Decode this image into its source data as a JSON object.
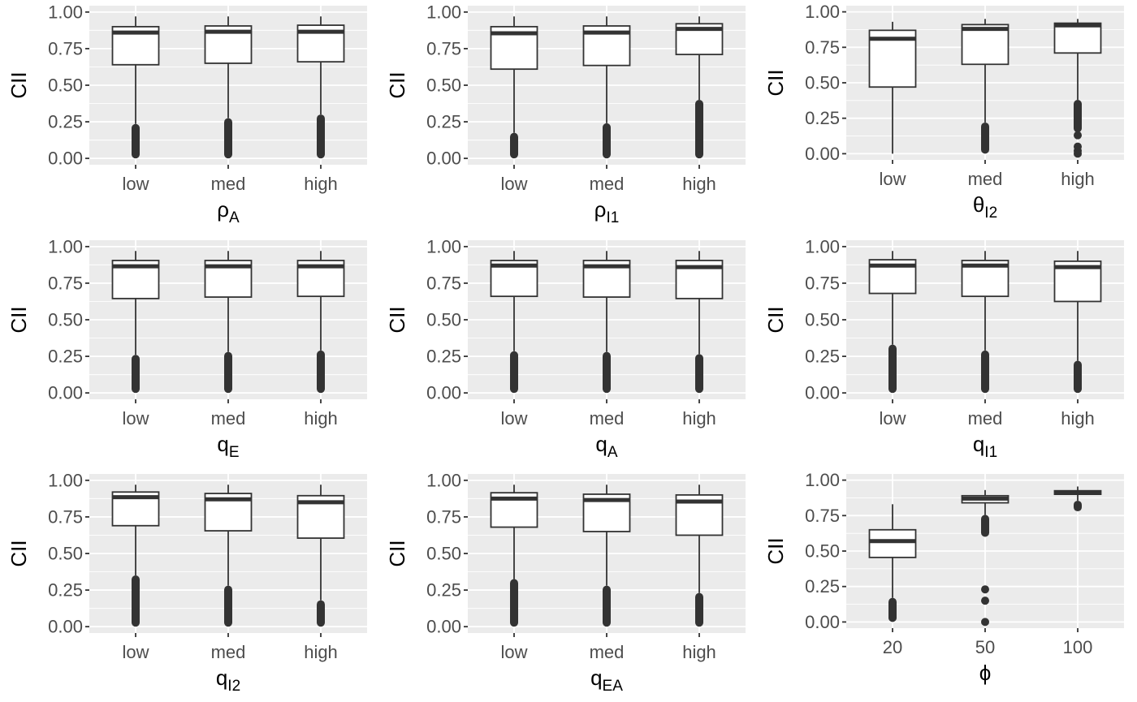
{
  "chart_data": [
    {
      "type": "box",
      "ylabel": "CII",
      "xlabel": {
        "base": "ρ",
        "sub": "A"
      },
      "ylim": [
        0,
        1
      ],
      "yticks": [
        "0.00",
        "0.25",
        "0.50",
        "0.75",
        "1.00"
      ],
      "categories": [
        "low",
        "med",
        "high"
      ],
      "boxes": [
        {
          "q1": 0.64,
          "median": 0.86,
          "q3": 0.9,
          "whisker_low": 0.235,
          "whisker_high": 0.97,
          "outliers": {
            "range": [
              0.0,
              0.235
            ]
          }
        },
        {
          "q1": 0.65,
          "median": 0.865,
          "q3": 0.905,
          "whisker_low": 0.275,
          "whisker_high": 0.97,
          "outliers": {
            "range": [
              0.0,
              0.275
            ]
          }
        },
        {
          "q1": 0.66,
          "median": 0.865,
          "q3": 0.91,
          "whisker_low": 0.3,
          "whisker_high": 0.97,
          "outliers": {
            "range": [
              0.0,
              0.3
            ]
          }
        }
      ]
    },
    {
      "type": "box",
      "ylabel": "CII",
      "xlabel": {
        "base": "ρ",
        "sub": "I1"
      },
      "ylim": [
        0,
        1
      ],
      "yticks": [
        "0.00",
        "0.25",
        "0.50",
        "0.75",
        "1.00"
      ],
      "categories": [
        "low",
        "med",
        "high"
      ],
      "boxes": [
        {
          "q1": 0.61,
          "median": 0.855,
          "q3": 0.9,
          "whisker_low": 0.175,
          "whisker_high": 0.97,
          "outliers": {
            "range": [
              0.0,
              0.175
            ]
          }
        },
        {
          "q1": 0.635,
          "median": 0.86,
          "q3": 0.905,
          "whisker_low": 0.24,
          "whisker_high": 0.97,
          "outliers": {
            "range": [
              0.0,
              0.24
            ]
          }
        },
        {
          "q1": 0.71,
          "median": 0.885,
          "q3": 0.92,
          "whisker_low": 0.4,
          "whisker_high": 0.97,
          "outliers": {
            "range": [
              0.0,
              0.4
            ]
          }
        }
      ]
    },
    {
      "type": "box",
      "ylabel": "CII",
      "xlabel": {
        "base": "θ",
        "sub": "I2"
      },
      "ylim": [
        0,
        1
      ],
      "yticks": [
        "0.00",
        "0.25",
        "0.50",
        "0.75",
        "1.00"
      ],
      "categories": [
        "low",
        "med",
        "high"
      ],
      "boxes": [
        {
          "q1": 0.47,
          "median": 0.81,
          "q3": 0.87,
          "whisker_low": 0.0,
          "whisker_high": 0.93
        },
        {
          "q1": 0.63,
          "median": 0.88,
          "q3": 0.91,
          "whisker_low": 0.22,
          "whisker_high": 0.95,
          "outliers": {
            "range": [
              0.0,
              0.22
            ]
          }
        },
        {
          "q1": 0.71,
          "median": 0.905,
          "q3": 0.92,
          "whisker_low": 0.38,
          "whisker_high": 0.95,
          "outliers": {
            "range": [
              0.15,
              0.38
            ],
            "points": [
              0.0,
              0.02,
              0.05,
              0.13
            ]
          }
        }
      ]
    },
    {
      "type": "box",
      "ylabel": "CII",
      "xlabel": {
        "base": "q",
        "sub": "E"
      },
      "ylim": [
        0,
        1
      ],
      "yticks": [
        "0.00",
        "0.25",
        "0.50",
        "0.75",
        "1.00"
      ],
      "categories": [
        "low",
        "med",
        "high"
      ],
      "boxes": [
        {
          "q1": 0.645,
          "median": 0.865,
          "q3": 0.905,
          "whisker_low": 0.26,
          "whisker_high": 0.97,
          "outliers": {
            "range": [
              0.0,
              0.26
            ]
          }
        },
        {
          "q1": 0.655,
          "median": 0.865,
          "q3": 0.905,
          "whisker_low": 0.28,
          "whisker_high": 0.97,
          "outliers": {
            "range": [
              0.0,
              0.28
            ]
          }
        },
        {
          "q1": 0.66,
          "median": 0.865,
          "q3": 0.905,
          "whisker_low": 0.29,
          "whisker_high": 0.97,
          "outliers": {
            "range": [
              0.0,
              0.29
            ]
          }
        }
      ]
    },
    {
      "type": "box",
      "ylabel": "CII",
      "xlabel": {
        "base": "q",
        "sub": "A"
      },
      "ylim": [
        0,
        1
      ],
      "yticks": [
        "0.00",
        "0.25",
        "0.50",
        "0.75",
        "1.00"
      ],
      "categories": [
        "low",
        "med",
        "high"
      ],
      "boxes": [
        {
          "q1": 0.66,
          "median": 0.87,
          "q3": 0.905,
          "whisker_low": 0.285,
          "whisker_high": 0.97,
          "outliers": {
            "range": [
              0.0,
              0.285
            ]
          }
        },
        {
          "q1": 0.655,
          "median": 0.865,
          "q3": 0.905,
          "whisker_low": 0.28,
          "whisker_high": 0.97,
          "outliers": {
            "range": [
              0.0,
              0.28
            ]
          }
        },
        {
          "q1": 0.645,
          "median": 0.86,
          "q3": 0.905,
          "whisker_low": 0.265,
          "whisker_high": 0.97,
          "outliers": {
            "range": [
              0.0,
              0.265
            ]
          }
        }
      ]
    },
    {
      "type": "box",
      "ylabel": "CII",
      "xlabel": {
        "base": "q",
        "sub": "I1"
      },
      "ylim": [
        0,
        1
      ],
      "yticks": [
        "0.00",
        "0.25",
        "0.50",
        "0.75",
        "1.00"
      ],
      "categories": [
        "low",
        "med",
        "high"
      ],
      "boxes": [
        {
          "q1": 0.68,
          "median": 0.87,
          "q3": 0.91,
          "whisker_low": 0.33,
          "whisker_high": 0.97,
          "outliers": {
            "range": [
              0.0,
              0.33
            ]
          }
        },
        {
          "q1": 0.66,
          "median": 0.87,
          "q3": 0.905,
          "whisker_low": 0.29,
          "whisker_high": 0.97,
          "outliers": {
            "range": [
              0.0,
              0.29
            ]
          }
        },
        {
          "q1": 0.625,
          "median": 0.86,
          "q3": 0.9,
          "whisker_low": 0.22,
          "whisker_high": 0.97,
          "outliers": {
            "range": [
              0.0,
              0.22
            ]
          }
        }
      ]
    },
    {
      "type": "box",
      "ylabel": "CII",
      "xlabel": {
        "base": "q",
        "sub": "I2"
      },
      "ylim": [
        0,
        1
      ],
      "yticks": [
        "0.00",
        "0.25",
        "0.50",
        "0.75",
        "1.00"
      ],
      "categories": [
        "low",
        "med",
        "high"
      ],
      "boxes": [
        {
          "q1": 0.69,
          "median": 0.885,
          "q3": 0.92,
          "whisker_low": 0.35,
          "whisker_high": 0.97,
          "outliers": {
            "range": [
              0.0,
              0.35
            ]
          }
        },
        {
          "q1": 0.655,
          "median": 0.87,
          "q3": 0.91,
          "whisker_low": 0.28,
          "whisker_high": 0.97,
          "outliers": {
            "range": [
              0.0,
              0.28
            ]
          }
        },
        {
          "q1": 0.605,
          "median": 0.85,
          "q3": 0.895,
          "whisker_low": 0.18,
          "whisker_high": 0.97,
          "outliers": {
            "range": [
              0.0,
              0.18
            ]
          }
        }
      ]
    },
    {
      "type": "box",
      "ylabel": "CII",
      "xlabel": {
        "base": "q",
        "sub": "EA"
      },
      "ylim": [
        0,
        1
      ],
      "yticks": [
        "0.00",
        "0.25",
        "0.50",
        "0.75",
        "1.00"
      ],
      "categories": [
        "low",
        "med",
        "high"
      ],
      "boxes": [
        {
          "q1": 0.68,
          "median": 0.875,
          "q3": 0.915,
          "whisker_low": 0.325,
          "whisker_high": 0.97,
          "outliers": {
            "range": [
              0.0,
              0.325
            ]
          }
        },
        {
          "q1": 0.65,
          "median": 0.865,
          "q3": 0.905,
          "whisker_low": 0.28,
          "whisker_high": 0.97,
          "outliers": {
            "range": [
              0.0,
              0.28
            ]
          }
        },
        {
          "q1": 0.625,
          "median": 0.855,
          "q3": 0.9,
          "whisker_low": 0.23,
          "whisker_high": 0.97,
          "outliers": {
            "range": [
              0.0,
              0.23
            ]
          }
        }
      ]
    },
    {
      "type": "box",
      "ylabel": "CII",
      "xlabel": {
        "base": "ϕ",
        "sub": ""
      },
      "ylim": [
        0,
        1
      ],
      "yticks": [
        "0.00",
        "0.25",
        "0.50",
        "0.75",
        "1.00"
      ],
      "categories": [
        "20",
        "50",
        "100"
      ],
      "boxes": [
        {
          "q1": 0.455,
          "median": 0.57,
          "q3": 0.65,
          "whisker_low": 0.17,
          "whisker_high": 0.83,
          "outliers": {
            "range": [
              0.0,
              0.17
            ]
          }
        },
        {
          "q1": 0.84,
          "median": 0.87,
          "q3": 0.89,
          "whisker_low": 0.755,
          "whisker_high": 0.93,
          "outliers": {
            "range": [
              0.6,
              0.755
            ],
            "points": [
              0.0,
              0.15,
              0.23
            ]
          }
        },
        {
          "q1": 0.9,
          "median": 0.91,
          "q3": 0.925,
          "whisker_low": 0.855,
          "whisker_high": 0.955,
          "outliers": {
            "range": [
              0.78,
              0.855
            ]
          }
        }
      ]
    }
  ]
}
